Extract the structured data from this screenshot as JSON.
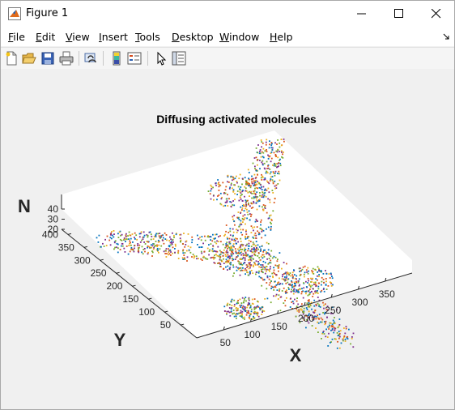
{
  "window": {
    "title": "Figure 1"
  },
  "menu": {
    "items": [
      "File",
      "Edit",
      "View",
      "Insert",
      "Tools",
      "Desktop",
      "Window",
      "Help"
    ]
  },
  "toolbar": {
    "icons": [
      "new-figure-icon",
      "open-file-icon",
      "save-icon",
      "print-icon",
      "link-plot-icon",
      "colorbar-icon",
      "legend-icon",
      "pointer-icon",
      "property-inspector-icon"
    ]
  },
  "chart_data": {
    "type": "scatter",
    "title": "Diffusing activated molecules",
    "xlabel": "X",
    "ylabel": "Y",
    "zlabel": "N",
    "x_ticks": [
      "50",
      "100",
      "150",
      "200",
      "250",
      "300",
      "350"
    ],
    "y_ticks": [
      "50",
      "100",
      "150",
      "200",
      "250",
      "300",
      "350",
      "400"
    ],
    "z_ticks": [
      "20",
      "30",
      "40"
    ],
    "xlim": [
      0,
      400
    ],
    "ylim": [
      0,
      420
    ],
    "zlim": [
      20,
      40
    ],
    "marker_colors": [
      "#0072bd",
      "#d95319",
      "#edb120",
      "#7e2f8e",
      "#77ac30"
    ],
    "grid": false
  }
}
